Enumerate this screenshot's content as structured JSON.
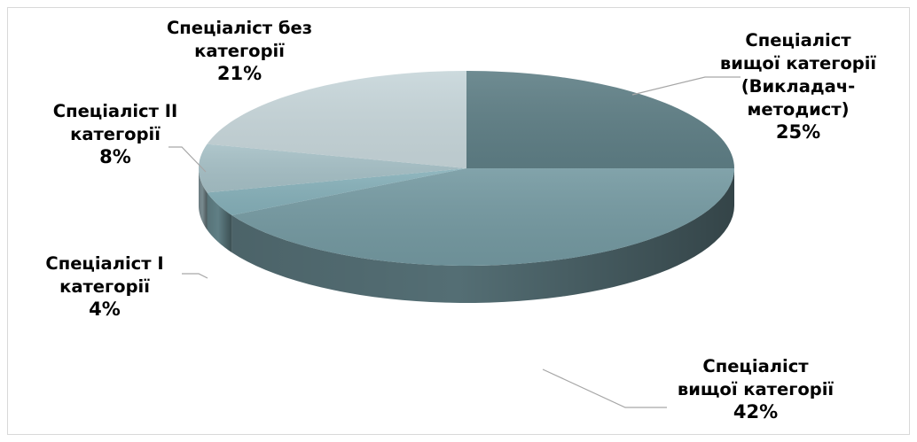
{
  "chart_data": {
    "type": "pie",
    "three_d": true,
    "start_angle": "12 o'clock",
    "direction": "clockwise",
    "legend": "none",
    "data_labels": "category name and percentage, outside with leader lines",
    "slices": [
      {
        "label_lines": [
          "Спеціаліст",
          "вищої категорії",
          "(Викладач-",
          "методист)"
        ],
        "percent_label": "25%",
        "value": 25,
        "color": "#5f7f86"
      },
      {
        "label_lines": [
          "Спеціаліст",
          "вищої категорії"
        ],
        "percent_label": "42%",
        "value": 42,
        "color": "#7499a1"
      },
      {
        "label_lines": [
          "Спеціаліст І",
          "категорії"
        ],
        "percent_label": "4%",
        "value": 4,
        "color": "#86b0b9"
      },
      {
        "label_lines": [
          "Спеціаліст ІІ",
          "категорії"
        ],
        "percent_label": "8%",
        "value": 8,
        "color": "#a6c0c6"
      },
      {
        "label_lines": [
          "Спеціаліст без",
          "категорії"
        ],
        "percent_label": "21%",
        "value": 21,
        "color": "#c7d6da"
      }
    ]
  }
}
